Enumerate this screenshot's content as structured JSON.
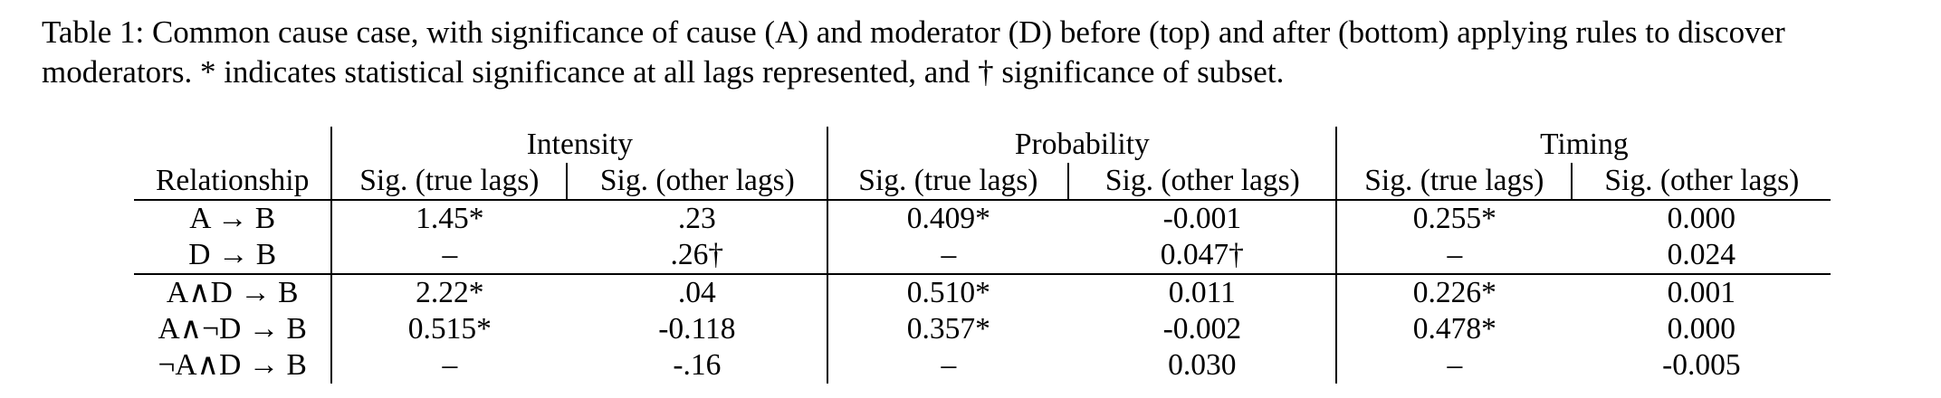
{
  "caption": "Table 1: Common cause case, with significance of cause (A) and moderator (D) before (top) and after (bottom) applying rules to discover moderators. * indicates statistical significance at all lags represented, and † significance of subset.",
  "table": {
    "groups": [
      "Intensity",
      "Probability",
      "Timing"
    ],
    "columns": [
      "Relationship",
      "Sig. (true lags)",
      "Sig. (other lags)",
      "Sig. (true lags)",
      "Sig. (other lags)",
      "Sig. (true lags)",
      "Sig. (other lags)"
    ],
    "rows": [
      [
        "A → B",
        "1.45*",
        ".23",
        "0.409*",
        "-0.001",
        "0.255*",
        "0.000"
      ],
      [
        "D → B",
        "–",
        ".26†",
        "–",
        "0.047†",
        "–",
        "0.024"
      ],
      [
        "A∧D → B",
        "2.22*",
        ".04",
        "0.510*",
        "0.011",
        "0.226*",
        "0.001"
      ],
      [
        "A∧¬D → B",
        "0.515*",
        "-0.118",
        "0.357*",
        "-0.002",
        "0.478*",
        "0.000"
      ],
      [
        "¬A∧D → B",
        "–",
        "-.16",
        "–",
        "0.030",
        "–",
        "-0.005"
      ]
    ]
  }
}
